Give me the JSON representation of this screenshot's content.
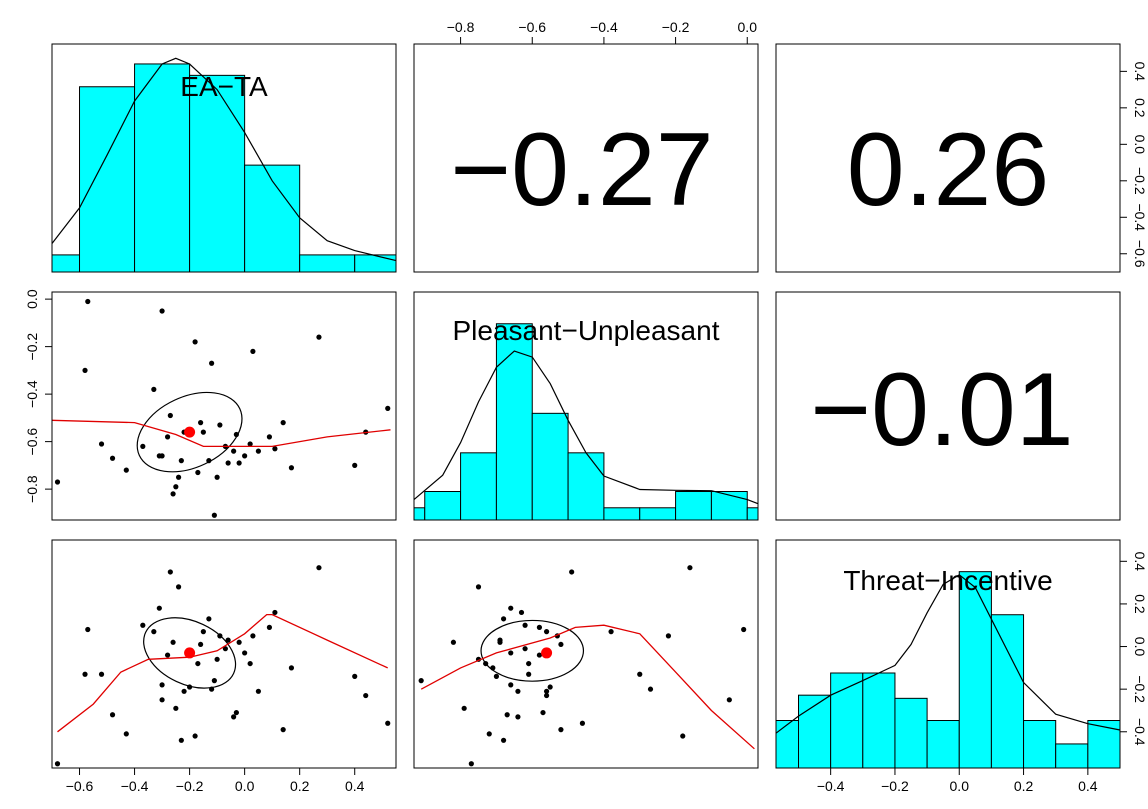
{
  "chart_data": {
    "type": "scatterplot-matrix",
    "variables": [
      "EA−TA",
      "Pleasant−Unpleasant",
      "Threat−Incentive"
    ],
    "colors": {
      "histogram_fill": "#00ffff",
      "density": "#000000",
      "loess": "#e00000",
      "centroid": "#ff0000",
      "points": "#000000"
    },
    "correlations": [
      {
        "pair": [
          "EA−TA",
          "Pleasant−Unpleasant"
        ],
        "label": "−0.27"
      },
      {
        "pair": [
          "EA−TA",
          "Threat−Incentive"
        ],
        "label": "0.26"
      },
      {
        "pair": [
          "Pleasant−Unpleasant",
          "Threat−Incentive"
        ],
        "label": "−0.01"
      }
    ],
    "axes": {
      "ea_ta": {
        "range": [
          -0.7,
          0.55
        ],
        "ticks": [
          -0.6,
          -0.4,
          -0.2,
          0.0,
          0.2,
          0.4
        ],
        "tick_labels": [
          "−0.6",
          "−0.4",
          "−0.2",
          "0.0",
          "0.2",
          "0.4"
        ]
      },
      "pleasant": {
        "range": [
          -0.93,
          0.03
        ],
        "ticks": [
          -0.8,
          -0.6,
          -0.4,
          -0.2,
          0.0
        ],
        "tick_labels": [
          "−0.8",
          "−0.6",
          "−0.4",
          "−0.2",
          "0.0"
        ]
      },
      "threat": {
        "range": [
          -0.57,
          0.5
        ],
        "ticks": [
          -0.4,
          -0.2,
          0.0,
          0.2,
          0.4
        ],
        "tick_labels": [
          "−0.4",
          "−0.2",
          "0.0",
          "0.2",
          "0.4"
        ]
      }
    },
    "histograms": {
      "ea_ta": {
        "breaks": [
          -0.7,
          -0.6,
          -0.4,
          -0.2,
          0.0,
          0.2,
          0.4,
          0.55
        ],
        "density": [
          0.12,
          1.3,
          1.46,
          1.38,
          0.75,
          0.12,
          0.12
        ],
        "ymax": 1.6
      },
      "pleasant": {
        "breaks": [
          -0.93,
          -0.9,
          -0.8,
          -0.7,
          -0.6,
          -0.5,
          -0.4,
          -0.3,
          -0.2,
          -0.1,
          0.0,
          0.03
        ],
        "density": [
          0.3,
          0.7,
          1.65,
          4.82,
          2.62,
          1.65,
          0.3,
          0.3,
          0.7,
          0.7,
          0.3
        ],
        "ymax": 5.6
      },
      "threat": {
        "breaks": [
          -0.57,
          -0.5,
          -0.4,
          -0.3,
          -0.2,
          -0.1,
          0.0,
          0.1,
          0.2,
          0.3,
          0.4,
          0.5
        ],
        "density": [
          0.75,
          1.15,
          1.5,
          1.5,
          1.1,
          0.75,
          3.1,
          2.42,
          0.75,
          0.38,
          0.75
        ],
        "ymax": 3.6
      }
    },
    "density_curves": {
      "ea_ta": [
        [
          -0.7,
          0.2
        ],
        [
          -0.6,
          0.45
        ],
        [
          -0.5,
          0.82
        ],
        [
          -0.4,
          1.2
        ],
        [
          -0.3,
          1.46
        ],
        [
          -0.25,
          1.5
        ],
        [
          -0.2,
          1.46
        ],
        [
          -0.1,
          1.28
        ],
        [
          0.0,
          0.98
        ],
        [
          0.1,
          0.64
        ],
        [
          0.2,
          0.38
        ],
        [
          0.3,
          0.22
        ],
        [
          0.4,
          0.15
        ],
        [
          0.55,
          0.08
        ]
      ],
      "pleasant": [
        [
          -0.93,
          0.5
        ],
        [
          -0.85,
          1.1
        ],
        [
          -0.8,
          1.9
        ],
        [
          -0.75,
          2.9
        ],
        [
          -0.7,
          3.75
        ],
        [
          -0.65,
          4.15
        ],
        [
          -0.6,
          4.0
        ],
        [
          -0.55,
          3.35
        ],
        [
          -0.5,
          2.45
        ],
        [
          -0.45,
          1.65
        ],
        [
          -0.4,
          1.08
        ],
        [
          -0.3,
          0.75
        ],
        [
          -0.2,
          0.73
        ],
        [
          -0.1,
          0.72
        ],
        [
          0.0,
          0.5
        ],
        [
          0.03,
          0.4
        ]
      ],
      "threat": [
        [
          -0.57,
          0.55
        ],
        [
          -0.5,
          0.82
        ],
        [
          -0.4,
          1.15
        ],
        [
          -0.3,
          1.38
        ],
        [
          -0.2,
          1.62
        ],
        [
          -0.15,
          1.95
        ],
        [
          -0.1,
          2.45
        ],
        [
          -0.05,
          2.9
        ],
        [
          0.0,
          3.05
        ],
        [
          0.05,
          2.85
        ],
        [
          0.1,
          2.35
        ],
        [
          0.2,
          1.35
        ],
        [
          0.3,
          0.85
        ],
        [
          0.4,
          0.7
        ],
        [
          0.5,
          0.6
        ]
      ]
    },
    "points": [
      {
        "ea": -0.57,
        "pl": -0.01,
        "th": 0.08
      },
      {
        "ea": -0.52,
        "pl": -0.61,
        "th": -0.13
      },
      {
        "ea": -0.48,
        "pl": -0.67,
        "th": -0.32
      },
      {
        "ea": -0.43,
        "pl": -0.72,
        "th": -0.41
      },
      {
        "ea": -0.37,
        "pl": -0.62,
        "th": 0.1
      },
      {
        "ea": -0.33,
        "pl": -0.38,
        "th": 0.07
      },
      {
        "ea": -0.31,
        "pl": -0.66,
        "th": 0.18
      },
      {
        "ea": -0.3,
        "pl": -0.05,
        "th": -0.25
      },
      {
        "ea": -0.3,
        "pl": -0.66,
        "th": -0.18
      },
      {
        "ea": -0.28,
        "pl": -0.58,
        "th": -0.04
      },
      {
        "ea": -0.27,
        "pl": -0.49,
        "th": 0.35
      },
      {
        "ea": -0.26,
        "pl": -0.82,
        "th": 0.02
      },
      {
        "ea": -0.25,
        "pl": -0.79,
        "th": -0.29
      },
      {
        "ea": -0.24,
        "pl": -0.75,
        "th": 0.28
      },
      {
        "ea": -0.23,
        "pl": -0.68,
        "th": -0.44
      },
      {
        "ea": -0.22,
        "pl": -0.56,
        "th": -0.21
      },
      {
        "ea": -0.2,
        "pl": -0.55,
        "th": -0.19
      },
      {
        "ea": -0.18,
        "pl": -0.18,
        "th": -0.42
      },
      {
        "ea": -0.17,
        "pl": -0.73,
        "th": -0.08
      },
      {
        "ea": -0.16,
        "pl": -0.52,
        "th": 0.01
      },
      {
        "ea": -0.15,
        "pl": -0.56,
        "th": 0.07
      },
      {
        "ea": -0.13,
        "pl": -0.68,
        "th": 0.13
      },
      {
        "ea": -0.11,
        "pl": -0.91,
        "th": -0.16
      },
      {
        "ea": -0.1,
        "pl": -0.75,
        "th": -0.06
      },
      {
        "ea": -0.09,
        "pl": -0.53,
        "th": 0.05
      },
      {
        "ea": -0.07,
        "pl": -0.62,
        "th": -0.01
      },
      {
        "ea": -0.06,
        "pl": -0.69,
        "th": 0.03
      },
      {
        "ea": -0.04,
        "pl": -0.64,
        "th": -0.33
      },
      {
        "ea": -0.03,
        "pl": -0.57,
        "th": -0.31
      },
      {
        "ea": -0.02,
        "pl": -0.69,
        "th": 0.02
      },
      {
        "ea": 0.0,
        "pl": -0.66,
        "th": -0.03
      },
      {
        "ea": 0.02,
        "pl": -0.61,
        "th": -0.08
      },
      {
        "ea": 0.03,
        "pl": -0.22,
        "th": 0.05
      },
      {
        "ea": 0.05,
        "pl": -0.64,
        "th": -0.21
      },
      {
        "ea": 0.09,
        "pl": -0.58,
        "th": 0.09
      },
      {
        "ea": 0.11,
        "pl": -0.63,
        "th": 0.16
      },
      {
        "ea": 0.14,
        "pl": -0.52,
        "th": -0.39
      },
      {
        "ea": 0.17,
        "pl": -0.71,
        "th": -0.1
      },
      {
        "ea": 0.27,
        "pl": -0.16,
        "th": 0.37
      },
      {
        "ea": 0.4,
        "pl": -0.7,
        "th": -0.14
      },
      {
        "ea": 0.44,
        "pl": -0.56,
        "th": -0.23
      },
      {
        "ea": 0.52,
        "pl": -0.46,
        "th": -0.36
      },
      {
        "ea": -0.68,
        "pl": -0.77,
        "th": -0.55
      },
      {
        "ea": -0.58,
        "pl": -0.3,
        "th": -0.13
      },
      {
        "ea": -0.12,
        "pl": -0.27,
        "th": -0.2
      }
    ],
    "centroid": {
      "ea": -0.2,
      "pl": -0.56,
      "th": -0.03
    },
    "loess": {
      "pl_vs_ea": [
        [
          -0.7,
          -0.51
        ],
        [
          -0.4,
          -0.52
        ],
        [
          -0.25,
          -0.57
        ],
        [
          -0.15,
          -0.62
        ],
        [
          -0.05,
          -0.62
        ],
        [
          0.1,
          -0.62
        ],
        [
          0.3,
          -0.58
        ],
        [
          0.53,
          -0.55
        ]
      ],
      "th_vs_ea": [
        [
          -0.68,
          -0.4
        ],
        [
          -0.55,
          -0.27
        ],
        [
          -0.45,
          -0.12
        ],
        [
          -0.35,
          -0.06
        ],
        [
          -0.2,
          -0.05
        ],
        [
          -0.1,
          -0.02
        ],
        [
          0.0,
          0.06
        ],
        [
          0.08,
          0.15
        ],
        [
          0.1,
          0.15
        ],
        [
          0.3,
          0.03
        ],
        [
          0.52,
          -0.1
        ]
      ],
      "th_vs_pl": [
        [
          -0.91,
          -0.2
        ],
        [
          -0.8,
          -0.1
        ],
        [
          -0.7,
          -0.03
        ],
        [
          -0.55,
          0.04
        ],
        [
          -0.48,
          0.09
        ],
        [
          -0.4,
          0.1
        ],
        [
          -0.3,
          0.06
        ],
        [
          -0.2,
          -0.12
        ],
        [
          -0.1,
          -0.3
        ],
        [
          0.02,
          -0.48
        ]
      ]
    },
    "ellipses": {
      "pl_vs_ea": {
        "cx": -0.2,
        "cy": -0.56,
        "rx": 0.33,
        "ry": 0.23,
        "angle": -25
      },
      "th_vs_ea": {
        "cx": -0.2,
        "cy": -0.03,
        "rx": 0.28,
        "ry": 0.22,
        "angle": 25
      },
      "th_vs_pl": {
        "cx": -0.6,
        "cy": -0.02,
        "rx": 0.23,
        "ry": 0.21,
        "angle": 0
      }
    }
  }
}
